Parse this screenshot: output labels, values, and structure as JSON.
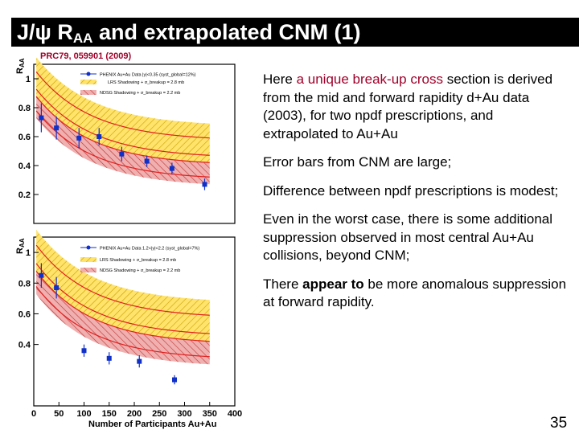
{
  "title": {
    "main": "J/ψ R",
    "sub": "AA",
    "rest": " and extrapolated CNM (1)"
  },
  "citation": "PRC79, 059901 (2009)",
  "paragraphs": {
    "p1_before": "Here ",
    "p1_highlight": "a unique break-up cross",
    "p1_after": " section is derived from the mid and forward rapidity d+Au data (2003), for two npdf prescriptions, and extrapolated to Au+Au",
    "p2": "Error bars from CNM are large;",
    "p3": "Difference between npdf prescriptions is modest;",
    "p4": "Even in the worst case, there is some additional suppression observed in most central Au+Au collisions, beyond CNM;",
    "p5_before": "There ",
    "p5_bold": "appear to",
    "p5_after": " be more anomalous suppression at forward rapidity."
  },
  "page_number": "35",
  "chart_data": [
    {
      "type": "scatter",
      "panel": "top",
      "ylabel_main": "R",
      "ylabel_sub": "AA",
      "xlim": [
        0,
        400
      ],
      "ylim": [
        0,
        1.1
      ],
      "yticks": [
        "0.2",
        "0.4",
        "0.6",
        "0.8",
        "1"
      ],
      "legend": [
        "PHENIX Au+Au Data |y|<0.35 (syst_global=12%)",
        "LRS Shadowing + σ_breakup = 2.8 mb",
        "NDSG Shadowing + σ_breakup = 2.2 mb"
      ],
      "points": [
        {
          "x": 15,
          "y": 0.73,
          "err": 0.1
        },
        {
          "x": 45,
          "y": 0.66,
          "err": 0.08
        },
        {
          "x": 90,
          "y": 0.59,
          "err": 0.07
        },
        {
          "x": 130,
          "y": 0.6,
          "err": 0.06
        },
        {
          "x": 175,
          "y": 0.48,
          "err": 0.05
        },
        {
          "x": 225,
          "y": 0.43,
          "err": 0.04
        },
        {
          "x": 275,
          "y": 0.38,
          "err": 0.04
        },
        {
          "x": 340,
          "y": 0.27,
          "err": 0.04
        }
      ],
      "colors": {
        "lrs_band": "#ffe36b",
        "ndsg_band": "#e27a7a",
        "points": "#1030c8",
        "line": "#e02020"
      }
    },
    {
      "type": "scatter",
      "panel": "bottom",
      "ylabel_main": "R",
      "ylabel_sub": "AA",
      "xlabel": "Number of Participants Au+Au",
      "xlim": [
        0,
        400
      ],
      "ylim": [
        0,
        1.1
      ],
      "xticks": [
        "0",
        "50",
        "100",
        "150",
        "200",
        "250",
        "300",
        "350",
        "400"
      ],
      "yticks": [
        "0.4",
        "0.6",
        "0.8",
        "1"
      ],
      "legend": [
        "PHENIX Au+Au Data 1.2<|y|<2.2 (syst_global=7%)",
        "LRS Shadowing + σ_breakup = 2.8 mb",
        "NDSG Shadowing + σ_breakup = 2.2 mb"
      ],
      "points": [
        {
          "x": 15,
          "y": 0.85,
          "err": 0.08
        },
        {
          "x": 45,
          "y": 0.77,
          "err": 0.07
        },
        {
          "x": 100,
          "y": 0.36,
          "err": 0.04
        },
        {
          "x": 150,
          "y": 0.31,
          "err": 0.04
        },
        {
          "x": 210,
          "y": 0.29,
          "err": 0.04
        },
        {
          "x": 280,
          "y": 0.17,
          "err": 0.03
        }
      ],
      "colors": {
        "lrs_band": "#ffe36b",
        "ndsg_band": "#e27a7a",
        "points": "#1030c8",
        "line": "#e02020"
      }
    }
  ]
}
